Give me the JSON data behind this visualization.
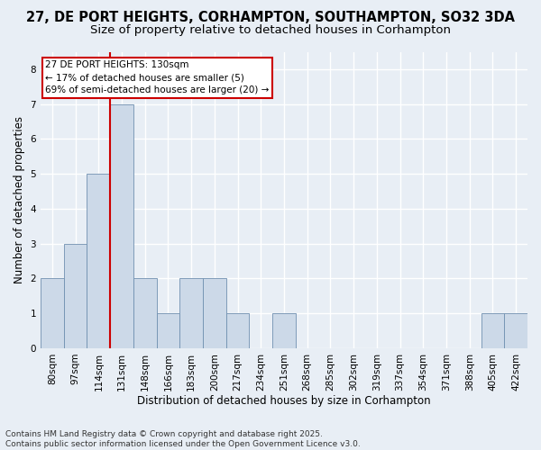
{
  "title": "27, DE PORT HEIGHTS, CORHAMPTON, SOUTHAMPTON, SO32 3DA",
  "subtitle": "Size of property relative to detached houses in Corhampton",
  "xlabel": "Distribution of detached houses by size in Corhampton",
  "ylabel": "Number of detached properties",
  "categories": [
    "80sqm",
    "97sqm",
    "114sqm",
    "131sqm",
    "148sqm",
    "166sqm",
    "183sqm",
    "200sqm",
    "217sqm",
    "234sqm",
    "251sqm",
    "268sqm",
    "285sqm",
    "302sqm",
    "319sqm",
    "337sqm",
    "354sqm",
    "371sqm",
    "388sqm",
    "405sqm",
    "422sqm"
  ],
  "values": [
    2,
    3,
    5,
    7,
    2,
    1,
    2,
    2,
    1,
    0,
    1,
    0,
    0,
    0,
    0,
    0,
    0,
    0,
    0,
    1,
    1
  ],
  "bar_color": "#ccd9e8",
  "bar_edge_color": "#7090b0",
  "reference_line_x": 2.5,
  "annotation_line1": "27 DE PORT HEIGHTS: 130sqm",
  "annotation_line2": "← 17% of detached houses are smaller (5)",
  "annotation_line3": "69% of semi-detached houses are larger (20) →",
  "annotation_box_facecolor": "#ffffff",
  "annotation_box_edgecolor": "#cc0000",
  "reference_line_color": "#cc0000",
  "ylim": [
    0,
    8.5
  ],
  "yticks": [
    0,
    1,
    2,
    3,
    4,
    5,
    6,
    7,
    8
  ],
  "footer_line1": "Contains HM Land Registry data © Crown copyright and database right 2025.",
  "footer_line2": "Contains public sector information licensed under the Open Government Licence v3.0.",
  "bg_color": "#e8eef5",
  "plot_bg_color": "#e8eef5",
  "grid_color": "#ffffff",
  "title_fontsize": 10.5,
  "subtitle_fontsize": 9.5,
  "axis_label_fontsize": 8.5,
  "tick_fontsize": 7.5,
  "annotation_fontsize": 7.5,
  "footer_fontsize": 6.5
}
